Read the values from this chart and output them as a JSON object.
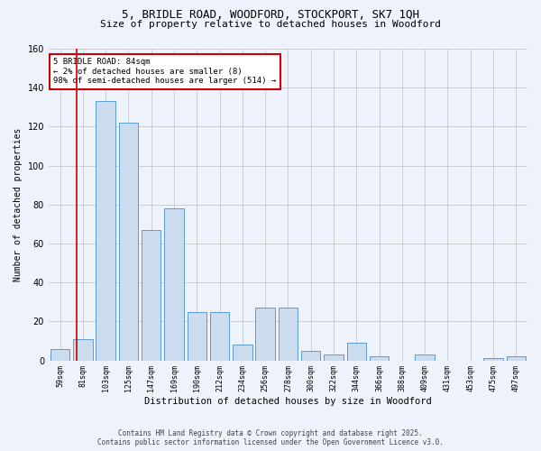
{
  "title1": "5, BRIDLE ROAD, WOODFORD, STOCKPORT, SK7 1QH",
  "title2": "Size of property relative to detached houses in Woodford",
  "xlabel": "Distribution of detached houses by size in Woodford",
  "ylabel": "Number of detached properties",
  "footer": "Contains HM Land Registry data © Crown copyright and database right 2025.\nContains public sector information licensed under the Open Government Licence v3.0.",
  "categories": [
    "59sqm",
    "81sqm",
    "103sqm",
    "125sqm",
    "147sqm",
    "169sqm",
    "190sqm",
    "212sqm",
    "234sqm",
    "256sqm",
    "278sqm",
    "300sqm",
    "322sqm",
    "344sqm",
    "366sqm",
    "388sqm",
    "409sqm",
    "431sqm",
    "453sqm",
    "475sqm",
    "497sqm"
  ],
  "values": [
    6,
    11,
    133,
    122,
    67,
    78,
    25,
    25,
    8,
    27,
    27,
    5,
    3,
    9,
    2,
    0,
    3,
    0,
    0,
    1,
    2
  ],
  "bar_color": "#ccdcef",
  "bar_edge_color": "#5b9bd5",
  "grid_color": "#c8c8c8",
  "bg_color": "#eef2fb",
  "annotation_box_text": "5 BRIDLE ROAD: 84sqm\n← 2% of detached houses are smaller (8)\n98% of semi-detached houses are larger (514) →",
  "annotation_box_color": "#ffffff",
  "annotation_box_edge_color": "#cc0000",
  "vline_color": "#cc0000",
  "vline_x": 0.72,
  "ylim": [
    0,
    160
  ],
  "yticks": [
    0,
    20,
    40,
    60,
    80,
    100,
    120,
    140,
    160
  ]
}
